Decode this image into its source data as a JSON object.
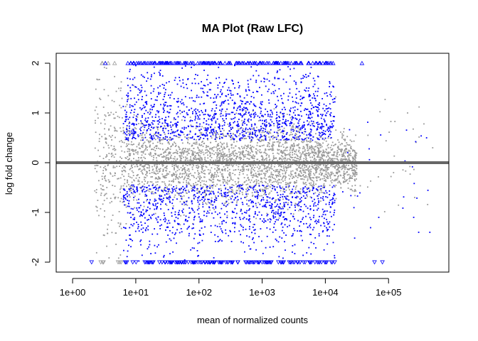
{
  "chart_data": {
    "type": "scatter",
    "title": "MA Plot (Raw LFC)",
    "xlabel": "mean of normalized counts",
    "ylabel": "log fold change",
    "x_scale": "log10",
    "xlim": [
      0.55,
      900000
    ],
    "ylim": [
      -2.2,
      2.2
    ],
    "x_ticks": [
      1,
      10,
      100,
      1000,
      10000,
      100000
    ],
    "x_tick_labels": [
      "1e+00",
      "1e+01",
      "1e+02",
      "1e+03",
      "1e+04",
      "1e+05"
    ],
    "y_ticks": [
      -2,
      -1,
      0,
      1,
      2
    ],
    "y_tick_labels": [
      "-2",
      "-1",
      "0",
      "1",
      "2"
    ],
    "grid": false,
    "legend": "none",
    "reference_line": {
      "y": 0,
      "color": "#666666"
    },
    "series": [
      {
        "role": "not significant",
        "color": "#999999",
        "marker": "point"
      },
      {
        "role": "significant",
        "color": "#0000ff",
        "marker": "point"
      }
    ],
    "clipped_points_marker": "triangle",
    "clipped_points_note": "points beyond y limits drawn as open triangles at y=2 and y=-2",
    "example_points": [
      {
        "x": 3.3,
        "y": 2.0,
        "group": "significant",
        "clipped": true
      },
      {
        "x": 38000,
        "y": 2.0,
        "group": "significant",
        "clipped": true
      },
      {
        "x": 2.0,
        "y": -2.0,
        "group": "significant",
        "clipped": true
      },
      {
        "x": 60000,
        "y": -2.0,
        "group": "significant",
        "clipped": true
      },
      {
        "x": 80000,
        "y": -2.0,
        "group": "significant",
        "clipped": true
      },
      {
        "x": 250000,
        "y": -1.1,
        "group": "significant",
        "clipped": false
      },
      {
        "x": 300000,
        "y": -1.4,
        "group": "significant",
        "clipped": false
      },
      {
        "x": 450000,
        "y": -1.4,
        "group": "significant",
        "clipped": false
      },
      {
        "x": 400000,
        "y": 0.5,
        "group": "significant",
        "clipped": false
      },
      {
        "x": 70000,
        "y": -1.1,
        "group": "significant",
        "clipped": false
      },
      {
        "x": 200000,
        "y": 1.0,
        "group": "not significant",
        "clipped": false
      },
      {
        "x": 500000,
        "y": 0.3,
        "group": "not significant",
        "clipped": false
      },
      {
        "x": 120000,
        "y": -0.2,
        "group": "not significant",
        "clipped": false
      }
    ]
  }
}
